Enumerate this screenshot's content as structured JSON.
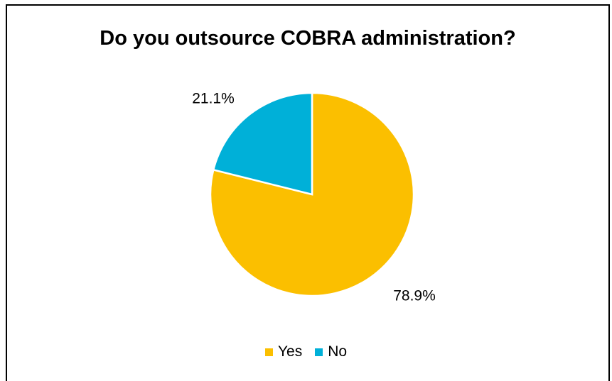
{
  "chart_data": {
    "type": "pie",
    "title": "Do you outsource COBRA administration?",
    "categories": [
      "Yes",
      "No"
    ],
    "values": [
      78.9,
      21.1
    ],
    "data_labels": [
      "78.9%",
      "21.1%"
    ],
    "colors": [
      "#FBBF00",
      "#00B0D8"
    ],
    "legend": {
      "placement": "bottom",
      "entries": [
        "Yes",
        "No"
      ]
    }
  }
}
